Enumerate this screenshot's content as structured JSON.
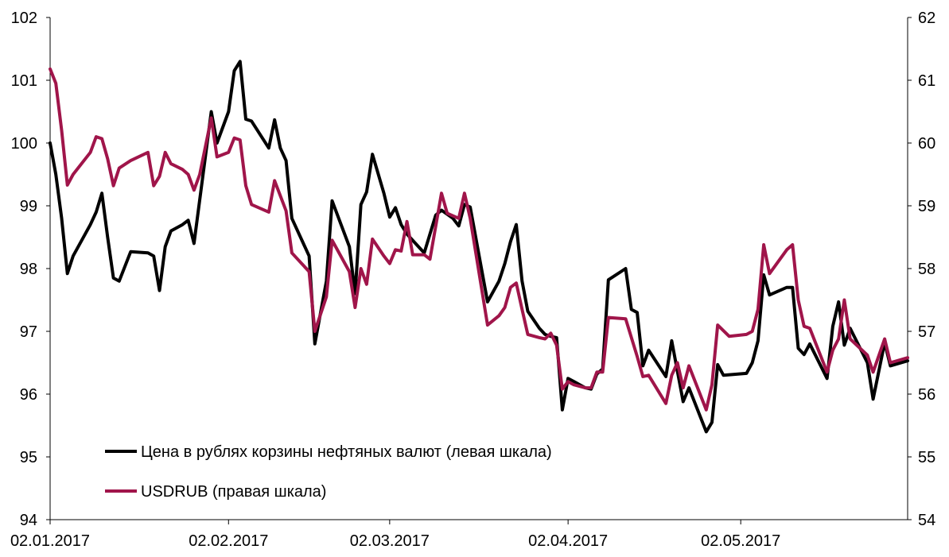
{
  "chart_data": {
    "type": "line",
    "title": "",
    "xlabel": "",
    "x_ticks": [
      "02.01.2017",
      "02.02.2017",
      "02.03.2017",
      "02.04.2017",
      "02.05.2017"
    ],
    "x_range": [
      "2017-01-02",
      "2017-05-31"
    ],
    "left_axis": {
      "ylim": [
        94,
        102
      ],
      "ticks": [
        94,
        95,
        96,
        97,
        98,
        99,
        100,
        101,
        102
      ]
    },
    "right_axis": {
      "ylim": [
        54,
        62
      ],
      "ticks": [
        54,
        55,
        56,
        57,
        58,
        59,
        60,
        61,
        62
      ]
    },
    "grid": false,
    "legend": "bottom-left",
    "series": [
      {
        "name": "Цена в рублях корзины нефтяных валют (левая шкала)",
        "axis": "left",
        "color": "#000000",
        "points": [
          [
            "2017-01-02",
            100.0
          ],
          [
            "2017-01-03",
            99.5
          ],
          [
            "2017-01-04",
            98.8
          ],
          [
            "2017-01-05",
            97.92
          ],
          [
            "2017-01-06",
            98.2
          ],
          [
            "2017-01-09",
            98.7
          ],
          [
            "2017-01-10",
            98.9
          ],
          [
            "2017-01-11",
            99.2
          ],
          [
            "2017-01-12",
            98.5
          ],
          [
            "2017-01-13",
            97.85
          ],
          [
            "2017-01-14",
            97.8
          ],
          [
            "2017-01-16",
            98.27
          ],
          [
            "2017-01-19",
            98.25
          ],
          [
            "2017-01-20",
            98.2
          ],
          [
            "2017-01-21",
            97.65
          ],
          [
            "2017-01-22",
            98.35
          ],
          [
            "2017-01-23",
            98.6
          ],
          [
            "2017-01-25",
            98.7
          ],
          [
            "2017-01-26",
            98.77
          ],
          [
            "2017-01-27",
            98.4
          ],
          [
            "2017-01-30",
            100.5
          ],
          [
            "2017-01-31",
            100.0
          ],
          [
            "2017-02-02",
            100.5
          ],
          [
            "2017-02-03",
            101.15
          ],
          [
            "2017-02-04",
            101.3
          ],
          [
            "2017-02-05",
            100.38
          ],
          [
            "2017-02-06",
            100.35
          ],
          [
            "2017-02-09",
            99.92
          ],
          [
            "2017-02-10",
            100.37
          ],
          [
            "2017-02-11",
            99.92
          ],
          [
            "2017-02-12",
            99.72
          ],
          [
            "2017-02-13",
            98.8
          ],
          [
            "2017-02-16",
            98.2
          ],
          [
            "2017-02-17",
            96.8
          ],
          [
            "2017-02-19",
            97.8
          ],
          [
            "2017-02-20",
            99.08
          ],
          [
            "2017-02-23",
            98.35
          ],
          [
            "2017-02-24",
            97.6
          ],
          [
            "2017-02-25",
            99.02
          ],
          [
            "2017-02-26",
            99.22
          ],
          [
            "2017-02-27",
            99.82
          ],
          [
            "2017-03-01",
            99.2
          ],
          [
            "2017-03-02",
            98.82
          ],
          [
            "2017-03-03",
            98.97
          ],
          [
            "2017-03-04",
            98.7
          ],
          [
            "2017-03-05",
            98.55
          ],
          [
            "2017-03-07",
            98.35
          ],
          [
            "2017-03-08",
            98.25
          ],
          [
            "2017-03-10",
            98.85
          ],
          [
            "2017-03-11",
            98.93
          ],
          [
            "2017-03-13",
            98.8
          ],
          [
            "2017-03-14",
            98.68
          ],
          [
            "2017-03-15",
            99.02
          ],
          [
            "2017-03-16",
            98.98
          ],
          [
            "2017-03-19",
            97.47
          ],
          [
            "2017-03-21",
            97.8
          ],
          [
            "2017-03-22",
            98.08
          ],
          [
            "2017-03-23",
            98.43
          ],
          [
            "2017-03-24",
            98.7
          ],
          [
            "2017-03-25",
            97.8
          ],
          [
            "2017-03-26",
            97.32
          ],
          [
            "2017-03-28",
            97.05
          ],
          [
            "2017-03-29",
            96.95
          ],
          [
            "2017-03-30",
            96.92
          ],
          [
            "2017-03-31",
            96.9
          ],
          [
            "2017-04-01",
            95.75
          ],
          [
            "2017-04-02",
            96.25
          ],
          [
            "2017-04-03",
            96.2
          ],
          [
            "2017-04-05",
            96.1
          ],
          [
            "2017-04-06",
            96.08
          ],
          [
            "2017-04-07",
            96.32
          ],
          [
            "2017-04-08",
            96.4
          ],
          [
            "2017-04-09",
            97.82
          ],
          [
            "2017-04-12",
            98.0
          ],
          [
            "2017-04-13",
            97.35
          ],
          [
            "2017-04-14",
            97.3
          ],
          [
            "2017-04-15",
            96.45
          ],
          [
            "2017-04-16",
            96.7
          ],
          [
            "2017-04-19",
            96.28
          ],
          [
            "2017-04-20",
            96.85
          ],
          [
            "2017-04-22",
            95.88
          ],
          [
            "2017-04-23",
            96.1
          ],
          [
            "2017-04-26",
            95.4
          ],
          [
            "2017-04-27",
            95.55
          ],
          [
            "2017-04-28",
            96.47
          ],
          [
            "2017-04-29",
            96.3
          ],
          [
            "2017-05-03",
            96.33
          ],
          [
            "2017-05-04",
            96.5
          ],
          [
            "2017-05-05",
            96.85
          ],
          [
            "2017-05-06",
            97.9
          ],
          [
            "2017-05-07",
            97.58
          ],
          [
            "2017-05-10",
            97.7
          ],
          [
            "2017-05-11",
            97.7
          ],
          [
            "2017-05-12",
            96.73
          ],
          [
            "2017-05-13",
            96.63
          ],
          [
            "2017-05-14",
            96.8
          ],
          [
            "2017-05-17",
            96.25
          ],
          [
            "2017-05-18",
            97.08
          ],
          [
            "2017-05-19",
            97.47
          ],
          [
            "2017-05-20",
            96.78
          ],
          [
            "2017-05-21",
            97.05
          ],
          [
            "2017-05-24",
            96.5
          ],
          [
            "2017-05-25",
            95.92
          ],
          [
            "2017-05-27",
            96.82
          ],
          [
            "2017-05-28",
            96.45
          ],
          [
            "2017-05-31",
            96.53
          ]
        ]
      },
      {
        "name": "USDRUB (правая шкала)",
        "axis": "right",
        "color": "#a0154a",
        "points": [
          [
            "2017-01-02",
            61.18
          ],
          [
            "2017-01-03",
            60.95
          ],
          [
            "2017-01-04",
            60.2
          ],
          [
            "2017-01-05",
            59.33
          ],
          [
            "2017-01-06",
            59.5
          ],
          [
            "2017-01-09",
            59.85
          ],
          [
            "2017-01-10",
            60.1
          ],
          [
            "2017-01-11",
            60.07
          ],
          [
            "2017-01-12",
            59.75
          ],
          [
            "2017-01-13",
            59.32
          ],
          [
            "2017-01-14",
            59.6
          ],
          [
            "2017-01-16",
            59.72
          ],
          [
            "2017-01-19",
            59.85
          ],
          [
            "2017-01-20",
            59.32
          ],
          [
            "2017-01-21",
            59.47
          ],
          [
            "2017-01-22",
            59.85
          ],
          [
            "2017-01-23",
            59.67
          ],
          [
            "2017-01-25",
            59.58
          ],
          [
            "2017-01-26",
            59.5
          ],
          [
            "2017-01-27",
            59.25
          ],
          [
            "2017-01-28",
            59.5
          ],
          [
            "2017-01-30",
            60.4
          ],
          [
            "2017-01-31",
            59.78
          ],
          [
            "2017-02-02",
            59.85
          ],
          [
            "2017-02-03",
            60.08
          ],
          [
            "2017-02-04",
            60.05
          ],
          [
            "2017-02-05",
            59.32
          ],
          [
            "2017-02-06",
            59.02
          ],
          [
            "2017-02-09",
            58.9
          ],
          [
            "2017-02-10",
            59.4
          ],
          [
            "2017-02-12",
            58.92
          ],
          [
            "2017-02-13",
            58.25
          ],
          [
            "2017-02-16",
            57.95
          ],
          [
            "2017-02-17",
            57.0
          ],
          [
            "2017-02-19",
            57.55
          ],
          [
            "2017-02-20",
            58.45
          ],
          [
            "2017-02-23",
            57.95
          ],
          [
            "2017-02-24",
            57.38
          ],
          [
            "2017-02-25",
            58.0
          ],
          [
            "2017-02-26",
            57.75
          ],
          [
            "2017-02-27",
            58.47
          ],
          [
            "2017-03-01",
            58.2
          ],
          [
            "2017-03-02",
            58.08
          ],
          [
            "2017-03-03",
            58.3
          ],
          [
            "2017-03-04",
            58.28
          ],
          [
            "2017-03-05",
            58.75
          ],
          [
            "2017-03-06",
            58.22
          ],
          [
            "2017-03-08",
            58.22
          ],
          [
            "2017-03-09",
            58.15
          ],
          [
            "2017-03-11",
            59.2
          ],
          [
            "2017-03-12",
            58.88
          ],
          [
            "2017-03-14",
            58.8
          ],
          [
            "2017-03-15",
            59.2
          ],
          [
            "2017-03-16",
            58.8
          ],
          [
            "2017-03-19",
            57.1
          ],
          [
            "2017-03-21",
            57.25
          ],
          [
            "2017-03-22",
            57.38
          ],
          [
            "2017-03-23",
            57.7
          ],
          [
            "2017-03-24",
            57.77
          ],
          [
            "2017-03-25",
            57.35
          ],
          [
            "2017-03-26",
            56.95
          ],
          [
            "2017-03-28",
            56.9
          ],
          [
            "2017-03-29",
            56.88
          ],
          [
            "2017-03-30",
            56.97
          ],
          [
            "2017-03-31",
            56.78
          ],
          [
            "2017-04-01",
            56.08
          ],
          [
            "2017-04-02",
            56.2
          ],
          [
            "2017-04-03",
            56.15
          ],
          [
            "2017-04-05",
            56.1
          ],
          [
            "2017-04-06",
            56.1
          ],
          [
            "2017-04-07",
            56.35
          ],
          [
            "2017-04-08",
            56.35
          ],
          [
            "2017-04-09",
            57.22
          ],
          [
            "2017-04-12",
            57.2
          ],
          [
            "2017-04-14",
            56.6
          ],
          [
            "2017-04-15",
            56.28
          ],
          [
            "2017-04-16",
            56.3
          ],
          [
            "2017-04-19",
            55.85
          ],
          [
            "2017-04-20",
            56.3
          ],
          [
            "2017-04-21",
            56.5
          ],
          [
            "2017-04-22",
            56.1
          ],
          [
            "2017-04-23",
            56.45
          ],
          [
            "2017-04-26",
            55.75
          ],
          [
            "2017-04-27",
            56.15
          ],
          [
            "2017-04-28",
            57.1
          ],
          [
            "2017-04-30",
            56.92
          ],
          [
            "2017-05-03",
            56.95
          ],
          [
            "2017-05-04",
            57.0
          ],
          [
            "2017-05-05",
            57.35
          ],
          [
            "2017-05-06",
            58.38
          ],
          [
            "2017-05-07",
            57.92
          ],
          [
            "2017-05-10",
            58.3
          ],
          [
            "2017-05-11",
            58.38
          ],
          [
            "2017-05-12",
            57.5
          ],
          [
            "2017-05-13",
            57.08
          ],
          [
            "2017-05-14",
            57.05
          ],
          [
            "2017-05-17",
            56.35
          ],
          [
            "2017-05-18",
            56.7
          ],
          [
            "2017-05-19",
            56.88
          ],
          [
            "2017-05-20",
            57.5
          ],
          [
            "2017-05-21",
            56.88
          ],
          [
            "2017-05-24",
            56.62
          ],
          [
            "2017-05-25",
            56.35
          ],
          [
            "2017-05-27",
            56.88
          ],
          [
            "2017-05-28",
            56.5
          ],
          [
            "2017-05-31",
            56.58
          ]
        ]
      }
    ]
  }
}
